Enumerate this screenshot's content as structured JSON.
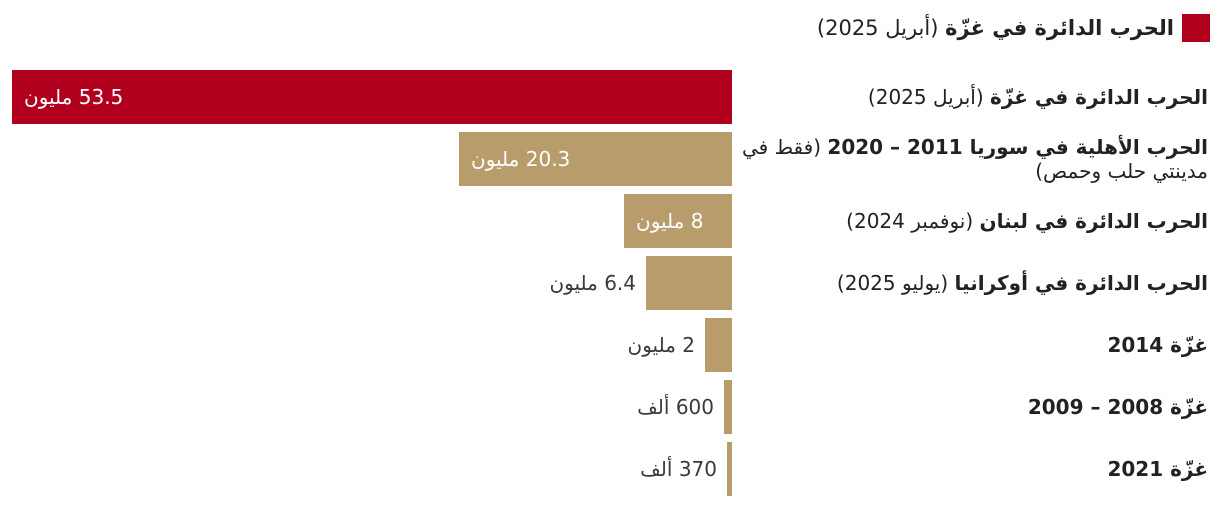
{
  "legend": {
    "bold": "الحرب الدائرة في غزّة",
    "rest": " (أبريل 2025)",
    "color": "#b0001e"
  },
  "chart_data": {
    "type": "bar",
    "orientation": "horizontal",
    "unit_note": "values in millions",
    "highlight_color": "#b0001e",
    "base_color": "#b99c6b",
    "xlim": [
      0,
      53.5
    ],
    "grid": false,
    "legend_position": "top-right",
    "bars": [
      {
        "bold": "الحرب الدائرة في غزّة",
        "rest": " (أبريل 2025)",
        "value": 53.5,
        "label": "53.5 مليون",
        "highlight": true,
        "label_inside": true
      },
      {
        "bold": "الحرب الأهلية في سوريا 2011 – 2020",
        "rest": " (فقط في مدينتي حلب وحمص)",
        "value": 20.3,
        "label": "20.3 مليون",
        "highlight": false,
        "label_inside": true
      },
      {
        "bold": "الحرب الدائرة في لبنان",
        "rest": " (نوفمبر 2024)",
        "value": 8,
        "label": "8 مليون",
        "highlight": false,
        "label_inside": true
      },
      {
        "bold": "الحرب الدائرة في أوكرانيا",
        "rest": " (يوليو 2025)",
        "value": 6.4,
        "label": "6.4 مليون",
        "highlight": false,
        "label_inside": false
      },
      {
        "bold": "غزّة 2014",
        "rest": "",
        "value": 2,
        "label": "2 مليون",
        "highlight": false,
        "label_inside": false
      },
      {
        "bold": "غزّة 2008 – 2009",
        "rest": "",
        "value": 0.6,
        "label": "600 ألف",
        "highlight": false,
        "label_inside": false
      },
      {
        "bold": "غزّة 2021",
        "rest": "",
        "value": 0.37,
        "label": "370 ألف",
        "highlight": false,
        "label_inside": false
      }
    ]
  }
}
